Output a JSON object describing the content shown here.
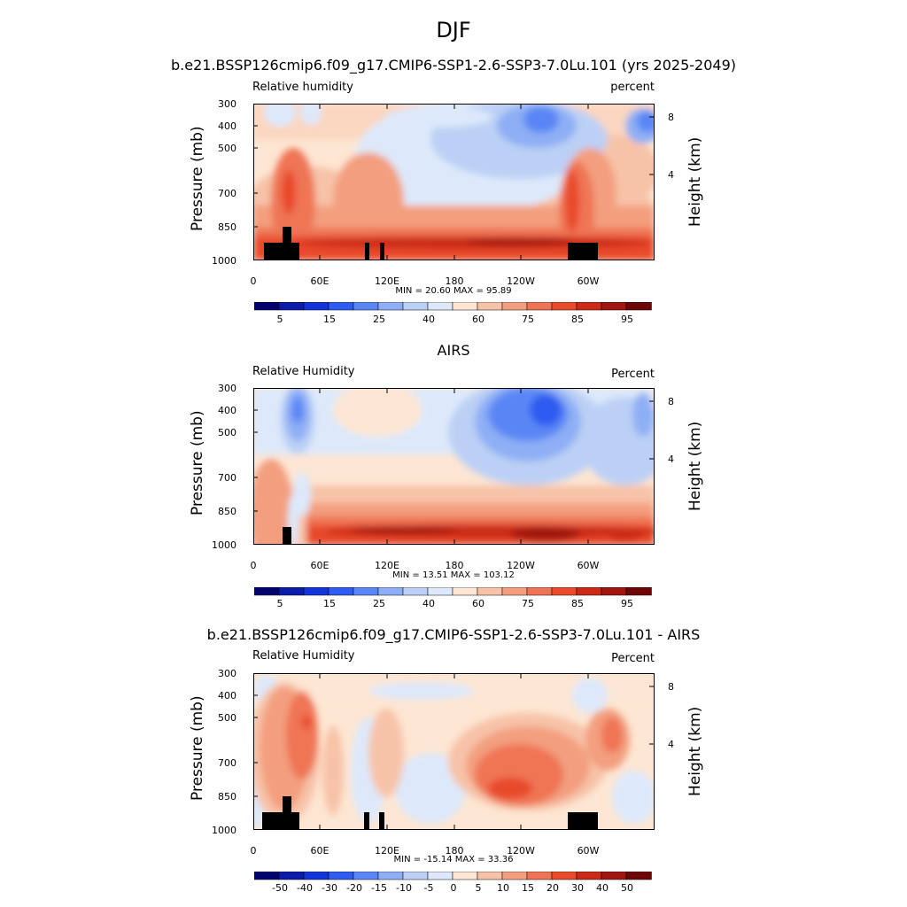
{
  "title": "DJF",
  "colors": {
    "rh_scale": [
      "#03036f",
      "#0a1ca9",
      "#1333d8",
      "#2f5cf0",
      "#5a86f5",
      "#8eaff5",
      "#bcd0f5",
      "#dde9fb",
      "#fde6d3",
      "#f7c3a8",
      "#f39f7f",
      "#ef7455",
      "#e84a2b",
      "#cb2a18",
      "#a01610",
      "#6d0606"
    ],
    "diff_scale": [
      "#03036f",
      "#0a1ca9",
      "#1333d8",
      "#2f5cf0",
      "#5a86f5",
      "#8eaff5",
      "#bcd0f5",
      "#dde9fb",
      "#fde6d3",
      "#f7c3a8",
      "#f39f7f",
      "#ef7455",
      "#e84a2b",
      "#cb2a18",
      "#a01610",
      "#6d0606"
    ],
    "topography": "#000000"
  },
  "panels": [
    {
      "title": "b.e21.BSSP126cmip6.f09_g17.CMIP6-SSP1-2.6-SSP3-7.0Lu.101 (yrs 2025-2049)",
      "left_string": "Relative humidity",
      "right_string": "percent",
      "stats": "MIN = 20.60  MAX = 95.89"
    },
    {
      "title": "AIRS",
      "left_string": "Relative Humidity",
      "right_string": "Percent",
      "stats": "MIN = 13.51  MAX = 103.12"
    },
    {
      "title": "b.e21.BSSP126cmip6.f09_g17.CMIP6-SSP1-2.6-SSP3-7.0Lu.101 - AIRS",
      "left_string": "Relative Humidity",
      "right_string": "Percent",
      "stats": "MIN = -15.14  MAX = 33.36"
    }
  ],
  "chart_data": [
    {
      "type": "heatmap",
      "title": "b.e21.BSSP126cmip6.f09_g17.CMIP6-SSP1-2.6-SSP3-7.0Lu.101 (yrs 2025-2049)",
      "ylabel": "Pressure (mb)",
      "ylabel_right": "Height (km)",
      "x_ticks": [
        "0",
        "60E",
        "120E",
        "180",
        "120W",
        "60W"
      ],
      "y_ticks": [
        "300",
        "400",
        "500",
        "700",
        "850",
        "1000"
      ],
      "y_right_ticks": [
        "8",
        "4"
      ],
      "xlim": [
        0,
        360
      ],
      "ylim": [
        1000,
        300
      ],
      "colorbar_labels": [
        "5",
        "15",
        "25",
        "40",
        "60",
        "75",
        "85",
        "95"
      ],
      "min": 20.6,
      "max": 95.89
    },
    {
      "type": "heatmap",
      "title": "AIRS",
      "ylabel": "Pressure (mb)",
      "ylabel_right": "Height (km)",
      "x_ticks": [
        "0",
        "60E",
        "120E",
        "180",
        "120W",
        "60W"
      ],
      "y_ticks": [
        "300",
        "400",
        "500",
        "700",
        "850",
        "1000"
      ],
      "y_right_ticks": [
        "8",
        "4"
      ],
      "xlim": [
        0,
        360
      ],
      "ylim": [
        1000,
        300
      ],
      "colorbar_labels": [
        "5",
        "15",
        "25",
        "40",
        "60",
        "75",
        "85",
        "95"
      ],
      "min": 13.51,
      "max": 103.12
    },
    {
      "type": "heatmap",
      "title": "b.e21.BSSP126cmip6.f09_g17.CMIP6-SSP1-2.6-SSP3-7.0Lu.101 - AIRS",
      "ylabel": "Pressure (mb)",
      "ylabel_right": "Height (km)",
      "x_ticks": [
        "0",
        "60E",
        "120E",
        "180",
        "120W",
        "60W"
      ],
      "y_ticks": [
        "300",
        "400",
        "500",
        "700",
        "850",
        "1000"
      ],
      "y_right_ticks": [
        "8",
        "4"
      ],
      "xlim": [
        0,
        360
      ],
      "ylim": [
        1000,
        300
      ],
      "colorbar_labels": [
        "-50",
        "-40",
        "-30",
        "-20",
        "-15",
        "-10",
        "-5",
        "0",
        "5",
        "10",
        "15",
        "20",
        "30",
        "40",
        "50"
      ],
      "min": -15.14,
      "max": 33.36
    }
  ]
}
